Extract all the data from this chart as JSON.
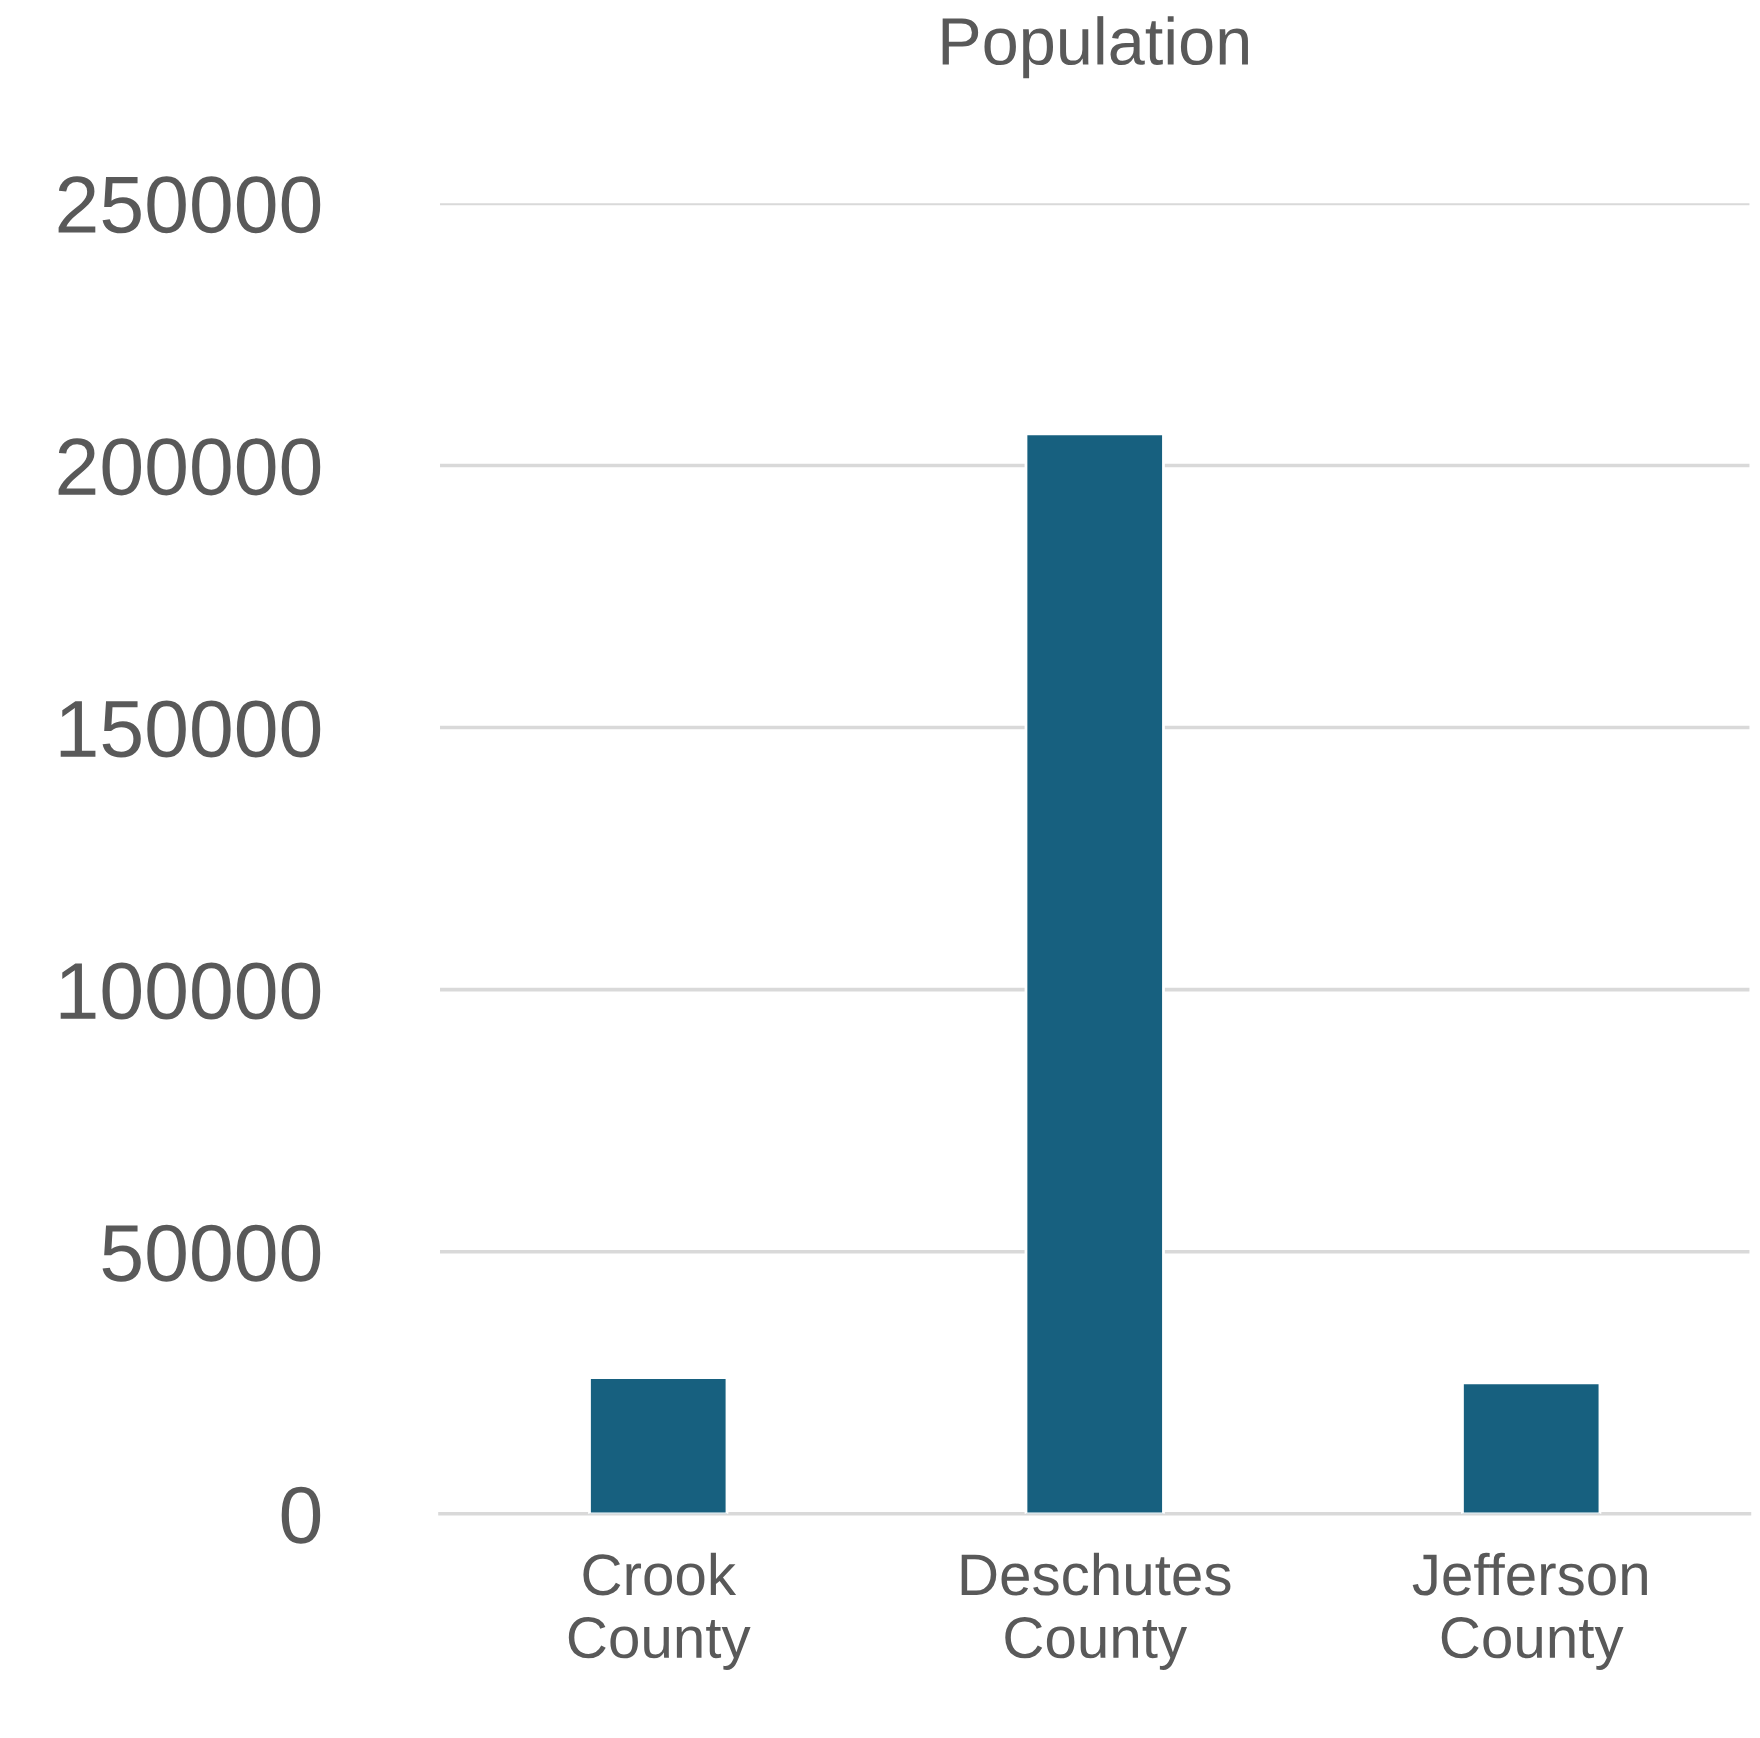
{
  "chart_data": {
    "type": "bar",
    "title": "Population",
    "categories": [
      "Crook County",
      "Deschutes County",
      "Jefferson County"
    ],
    "values": [
      26000,
      206000,
      25000
    ],
    "color": "#17607f",
    "ylim": [
      0,
      250000
    ],
    "yticks": [
      0,
      50000,
      100000,
      150000,
      200000,
      250000
    ],
    "grid": "y",
    "legend": false
  }
}
